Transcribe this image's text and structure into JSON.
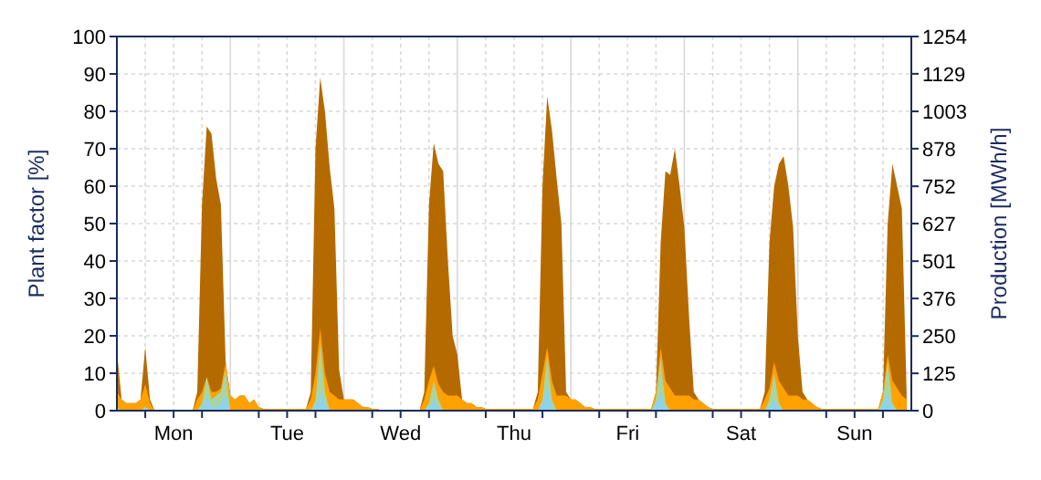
{
  "chart_data": {
    "type": "area",
    "ylabel": "Plant factor [%]",
    "y2label": "Production [MWh/h]",
    "ylim": [
      0,
      100
    ],
    "yticks": [
      0,
      10,
      20,
      30,
      40,
      50,
      60,
      70,
      80,
      90,
      100
    ],
    "y2lim": [
      0,
      1254
    ],
    "y2ticks": [
      0,
      125,
      250,
      376,
      501,
      627,
      752,
      878,
      1003,
      1129,
      1254
    ],
    "categories": [
      null,
      null,
      null,
      null,
      null,
      null,
      null,
      null,
      null,
      null,
      null,
      null,
      "Mon",
      null,
      null,
      null,
      null,
      null,
      null,
      null,
      null,
      null,
      null,
      null,
      null,
      null,
      null,
      null,
      null,
      null,
      null,
      null,
      null,
      null,
      null,
      null,
      "Tue",
      null,
      null,
      null,
      null,
      null,
      null,
      null,
      null,
      null,
      null,
      null,
      null,
      null,
      null,
      null,
      null,
      null,
      null,
      null,
      null,
      null,
      null,
      null,
      "Wed",
      null,
      null,
      null,
      null,
      null,
      null,
      null,
      null,
      null,
      null,
      null,
      null,
      null,
      null,
      null,
      null,
      null,
      null,
      null,
      null,
      null,
      null,
      null,
      "Thu",
      null,
      null,
      null,
      null,
      null,
      null,
      null,
      null,
      null,
      null,
      null,
      null,
      null,
      null,
      null,
      null,
      null,
      null,
      null,
      null,
      null,
      null,
      null,
      "Fri",
      null,
      null,
      null,
      null,
      null,
      null,
      null,
      null,
      null,
      null,
      null,
      null,
      null,
      null,
      null,
      null,
      null,
      null,
      null,
      null,
      null,
      null,
      null,
      "Sat",
      null,
      null,
      null,
      null,
      null,
      null,
      null,
      null,
      null,
      null,
      null,
      null,
      null,
      null,
      null,
      null,
      null,
      null,
      null,
      null,
      null,
      null,
      null,
      "Sun",
      null,
      null,
      null,
      null,
      null,
      null,
      null,
      null,
      null,
      null,
      null
    ],
    "grid": true,
    "series": [
      {
        "color": "#b56a00",
        "values": [
          16,
          3,
          2,
          2,
          2,
          3,
          17,
          3,
          0,
          0,
          0,
          0,
          0,
          0,
          0,
          0,
          0,
          5,
          55,
          76,
          74,
          62,
          55,
          13,
          4,
          3,
          4,
          4,
          2,
          3,
          1,
          0.5,
          0.5,
          0.5,
          0.5,
          0.5,
          0.5,
          0.5,
          0.5,
          0.5,
          0.5,
          5,
          70,
          89,
          80,
          65,
          54,
          11,
          3,
          3,
          3,
          2,
          1,
          1,
          0.5,
          0.5,
          0,
          0,
          0,
          0,
          0,
          0,
          0,
          0,
          0,
          5,
          55,
          71.5,
          66,
          64,
          40,
          20,
          15,
          3,
          2,
          2,
          1,
          1,
          0.5,
          0.5,
          0.5,
          0.5,
          0.5,
          0.5,
          0.5,
          0.5,
          0.5,
          0.5,
          0.5,
          5,
          60,
          84,
          75,
          62,
          50,
          5,
          3,
          3,
          2,
          1,
          1,
          0.5,
          0.5,
          0.5,
          0.5,
          0.5,
          0.5,
          0.5,
          0.5,
          0.5,
          0.5,
          0.5,
          0.5,
          0.5,
          5,
          45,
          64,
          63,
          70,
          60,
          49,
          25,
          5,
          3,
          2,
          1,
          0.5,
          0.5,
          0.5,
          0.5,
          0.5,
          0.5,
          0.5,
          0.5,
          0.5,
          0.5,
          0.5,
          5,
          45,
          60,
          66,
          68,
          60,
          49,
          20,
          5,
          3,
          2,
          1,
          0.5,
          0.5,
          0.5,
          0.5,
          0.5,
          0.5,
          0.5,
          0.5,
          0.5,
          0.5,
          0.5,
          0.5,
          0.5,
          5,
          50,
          66,
          60,
          54,
          5
        ]
      },
      {
        "color": "#ffa200",
        "values": [
          5,
          3,
          2,
          2,
          2,
          3,
          7,
          2,
          0,
          0,
          0,
          0,
          0,
          0,
          0,
          0,
          0,
          3,
          5,
          9,
          5,
          5,
          6,
          13,
          4,
          3,
          4,
          4,
          2,
          3,
          1,
          0.5,
          0.5,
          0.5,
          0.5,
          0.5,
          0.5,
          0.5,
          0.5,
          0.5,
          0.5,
          3,
          10,
          22,
          10,
          5,
          4,
          3,
          3,
          3,
          3,
          2,
          1,
          1,
          0.5,
          0.5,
          0,
          0,
          0,
          0,
          0,
          0,
          0,
          0,
          0,
          3,
          8,
          12,
          7,
          5,
          4,
          4,
          4,
          3,
          2,
          2,
          1,
          1,
          0.5,
          0.5,
          0.5,
          0.5,
          0.5,
          0.5,
          0.5,
          0.5,
          0.5,
          0.5,
          0.5,
          3,
          10,
          17,
          8,
          4,
          4,
          4,
          3,
          3,
          2,
          1,
          1,
          0.5,
          0.5,
          0.5,
          0.5,
          0.5,
          0.5,
          0.5,
          0.5,
          0.5,
          0.5,
          0.5,
          0.5,
          0.5,
          5,
          17,
          8,
          6,
          4,
          4,
          4,
          4,
          3,
          3,
          2,
          1,
          0.5,
          0.5,
          0.5,
          0.5,
          0.5,
          0.5,
          0.5,
          0.5,
          0.5,
          0.5,
          0.5,
          3,
          6,
          13,
          8,
          6,
          4,
          4,
          4,
          3,
          3,
          2,
          1,
          0.5,
          0.5,
          0.5,
          0.5,
          0.5,
          0.5,
          0.5,
          0.5,
          0.5,
          0.5,
          0.5,
          0.5,
          0.5,
          5,
          15,
          8,
          6,
          4,
          3
        ]
      },
      {
        "color": "#a8d5a2",
        "values": [
          1,
          0,
          0,
          0,
          0,
          0,
          1,
          0,
          0,
          0,
          0,
          0,
          0,
          0,
          0,
          0,
          0,
          0,
          2,
          9,
          3,
          4,
          5,
          11,
          0,
          0,
          0,
          0,
          0,
          0,
          0,
          0,
          0,
          0,
          0,
          0,
          0,
          0,
          0,
          0,
          0,
          0,
          3,
          18,
          5,
          0,
          0,
          0,
          0,
          0,
          0,
          0,
          0,
          0,
          0,
          0,
          0,
          0,
          0,
          0,
          0,
          0,
          0,
          0,
          0,
          0,
          2,
          8,
          3,
          0,
          0,
          0,
          0,
          0,
          0,
          0,
          0,
          0,
          0,
          0,
          0,
          0,
          0,
          0,
          0,
          0,
          0,
          0,
          0,
          0,
          3,
          15,
          3,
          0,
          0,
          0,
          0,
          0,
          0,
          0,
          0,
          0,
          0,
          0,
          0,
          0,
          0,
          0,
          0,
          0,
          0,
          0,
          0,
          0,
          3,
          14,
          2,
          0,
          0,
          0,
          0,
          0,
          0,
          0,
          0,
          0,
          0,
          0,
          0,
          0,
          0,
          0,
          0,
          0,
          0,
          0,
          0,
          0,
          3,
          10,
          2,
          0,
          0,
          0,
          0,
          0,
          0,
          0,
          0,
          0,
          0,
          0,
          0,
          0,
          0,
          0,
          0,
          0,
          0,
          0,
          0,
          0,
          3,
          13,
          2,
          0,
          0,
          0
        ]
      },
      {
        "color": "#8fd3ea",
        "values": [
          0,
          0,
          0,
          0,
          0,
          0,
          1,
          0,
          0,
          0,
          0,
          0,
          0,
          0,
          0,
          0,
          0,
          0,
          1,
          4,
          1,
          1,
          2,
          4,
          0,
          0,
          0,
          0,
          0,
          0,
          0,
          0,
          0,
          0,
          0,
          0,
          0,
          0,
          0,
          0,
          0,
          0,
          1,
          5,
          2,
          0,
          0,
          0,
          0,
          0,
          0,
          0,
          0,
          0,
          0,
          0,
          0,
          0,
          0,
          0,
          0,
          0,
          0,
          0,
          0,
          0,
          1,
          3,
          1,
          0,
          0,
          0,
          0,
          0,
          0,
          0,
          0,
          0,
          0,
          0,
          0,
          0,
          0,
          0,
          0,
          0,
          0,
          0,
          0,
          0,
          2,
          7,
          1,
          0,
          0,
          0,
          0,
          0,
          0,
          0,
          0,
          0,
          0,
          0,
          0,
          0,
          0,
          0,
          0,
          0,
          0,
          0,
          0,
          0,
          2,
          5,
          1,
          0,
          0,
          0,
          0,
          0,
          0,
          0,
          0,
          0,
          0,
          0,
          0,
          0,
          0,
          0,
          0,
          0,
          0,
          0,
          0,
          0,
          1,
          3,
          1,
          0,
          0,
          0,
          0,
          0,
          0,
          0,
          0,
          0,
          0,
          0,
          0,
          0,
          0,
          0,
          0,
          0,
          0,
          0,
          0,
          0,
          2,
          5,
          1,
          0,
          0,
          0
        ]
      }
    ]
  }
}
